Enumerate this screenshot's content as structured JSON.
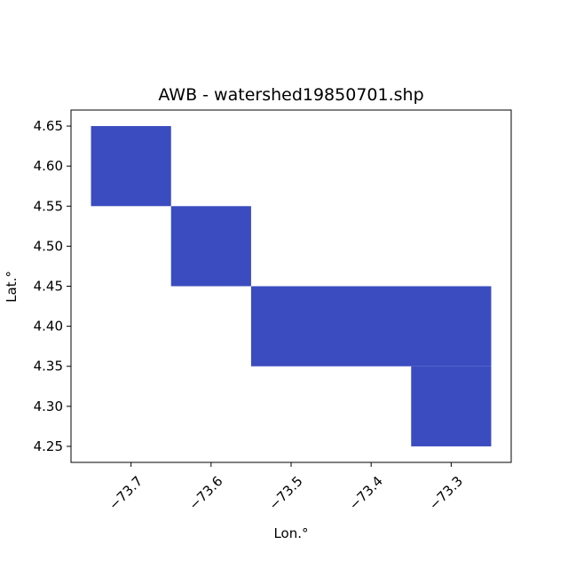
{
  "chart_data": {
    "type": "map",
    "title": "AWB - watershed19850701.shp",
    "xlabel": "Lon.°",
    "ylabel": "Lat.°",
    "xlim": [
      -73.775,
      -73.225
    ],
    "ylim": [
      4.23,
      4.67
    ],
    "fill_color": "#3b4cc0",
    "xticks": [
      {
        "value": -73.7,
        "label": "−73.7"
      },
      {
        "value": -73.6,
        "label": "−73.6"
      },
      {
        "value": -73.5,
        "label": "−73.5"
      },
      {
        "value": -73.4,
        "label": "−73.4"
      },
      {
        "value": -73.3,
        "label": "−73.3"
      }
    ],
    "yticks": [
      {
        "value": 4.25,
        "label": "4.25"
      },
      {
        "value": 4.3,
        "label": "4.30"
      },
      {
        "value": 4.35,
        "label": "4.35"
      },
      {
        "value": 4.4,
        "label": "4.40"
      },
      {
        "value": 4.45,
        "label": "4.45"
      },
      {
        "value": 4.5,
        "label": "4.50"
      },
      {
        "value": 4.55,
        "label": "4.55"
      },
      {
        "value": 4.6,
        "label": "4.60"
      },
      {
        "value": 4.65,
        "label": "4.65"
      }
    ],
    "cells": [
      {
        "lon": [
          -73.75,
          -73.65
        ],
        "lat": [
          4.55,
          4.65
        ]
      },
      {
        "lon": [
          -73.65,
          -73.55
        ],
        "lat": [
          4.45,
          4.55
        ]
      },
      {
        "lon": [
          -73.55,
          -73.25
        ],
        "lat": [
          4.35,
          4.45
        ]
      },
      {
        "lon": [
          -73.35,
          -73.25
        ],
        "lat": [
          4.25,
          4.35
        ]
      }
    ]
  }
}
